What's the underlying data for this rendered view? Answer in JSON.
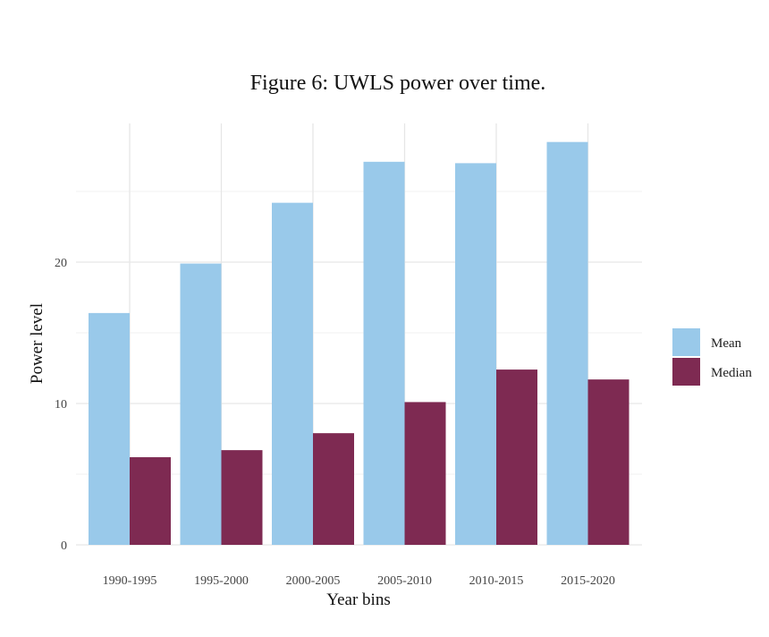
{
  "chart_data": {
    "type": "bar",
    "title": "Figure 6: UWLS power over time.",
    "xlabel": "Year bins",
    "ylabel": "Power level",
    "categories": [
      "1990-1995",
      "1995-2000",
      "2000-2005",
      "2005-2010",
      "2010-2015",
      "2015-2020"
    ],
    "series": [
      {
        "name": "Mean",
        "color": "#99c9ea",
        "values": [
          16.4,
          19.9,
          24.2,
          27.1,
          27.0,
          28.5
        ]
      },
      {
        "name": "Median",
        "color": "#7e2a52",
        "values": [
          6.2,
          6.7,
          7.9,
          10.1,
          12.4,
          11.7
        ]
      }
    ],
    "yticks": [
      0,
      10,
      20
    ],
    "ylim": [
      0,
      30
    ],
    "grid": true,
    "legend": "right"
  }
}
